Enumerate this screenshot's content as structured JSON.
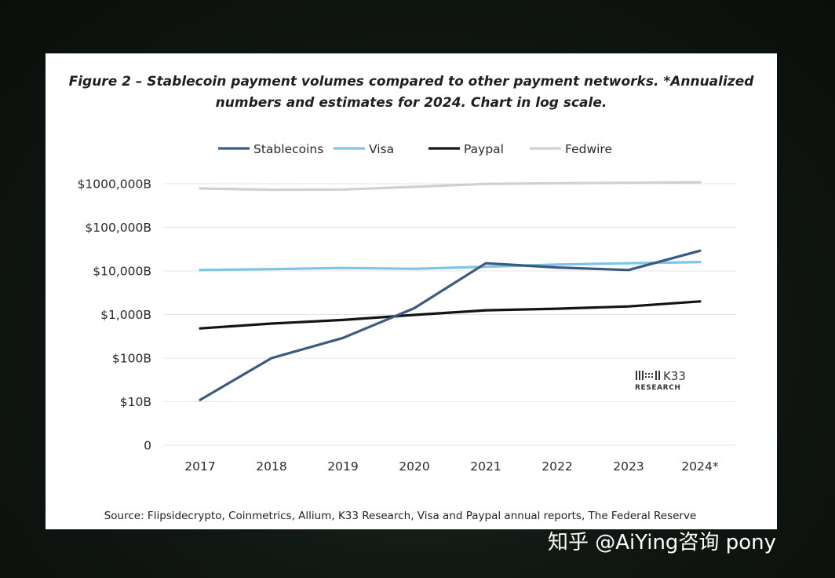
{
  "chart_data": {
    "type": "line",
    "title_line1": "Figure 2 – Stablecoin payment volumes compared to other payment networks. *Annualized",
    "title_line2": "numbers and estimates for 2024. Chart in log scale.",
    "categories": [
      "2017",
      "2018",
      "2019",
      "2020",
      "2021",
      "2022",
      "2023",
      "2024*"
    ],
    "y_scale": "log",
    "y_unit": "B",
    "ylim": [
      1,
      1000000
    ],
    "y_ticks": [
      {
        "value": 1,
        "label": "0"
      },
      {
        "value": 10,
        "label": "$10B"
      },
      {
        "value": 100,
        "label": "$100B"
      },
      {
        "value": 1000,
        "label": "$1,000B"
      },
      {
        "value": 10000,
        "label": "$10,000B"
      },
      {
        "value": 100000,
        "label": "$100,000B"
      },
      {
        "value": 1000000,
        "label": "$1000,000B"
      }
    ],
    "legend_position": "top-center",
    "series": [
      {
        "name": "Stablecoins",
        "color": "#3a5a80",
        "values": [
          11,
          100,
          290,
          1400,
          15000,
          12000,
          10500,
          29000
        ]
      },
      {
        "name": "Visa",
        "color": "#7ec3e8",
        "values": [
          10500,
          11000,
          11700,
          11200,
          12500,
          14000,
          15000,
          16000
        ]
      },
      {
        "name": "Paypal",
        "color": "#141414",
        "values": [
          480,
          620,
          750,
          980,
          1250,
          1360,
          1530,
          2000
        ]
      },
      {
        "name": "Fedwire",
        "color": "#ccd1d4",
        "values": [
          780000,
          730000,
          740000,
          850000,
          990000,
          1030000,
          1050000,
          1080000
        ]
      }
    ],
    "source": "Source: Flipsidecrypto, Coinmetrics, Allium, K33 Research, Visa and Paypal annual reports, The Federal Reserve"
  },
  "logo": {
    "name": "K33",
    "sub": "RESEARCH"
  },
  "watermark": "知乎 @AiYing咨询 pony"
}
